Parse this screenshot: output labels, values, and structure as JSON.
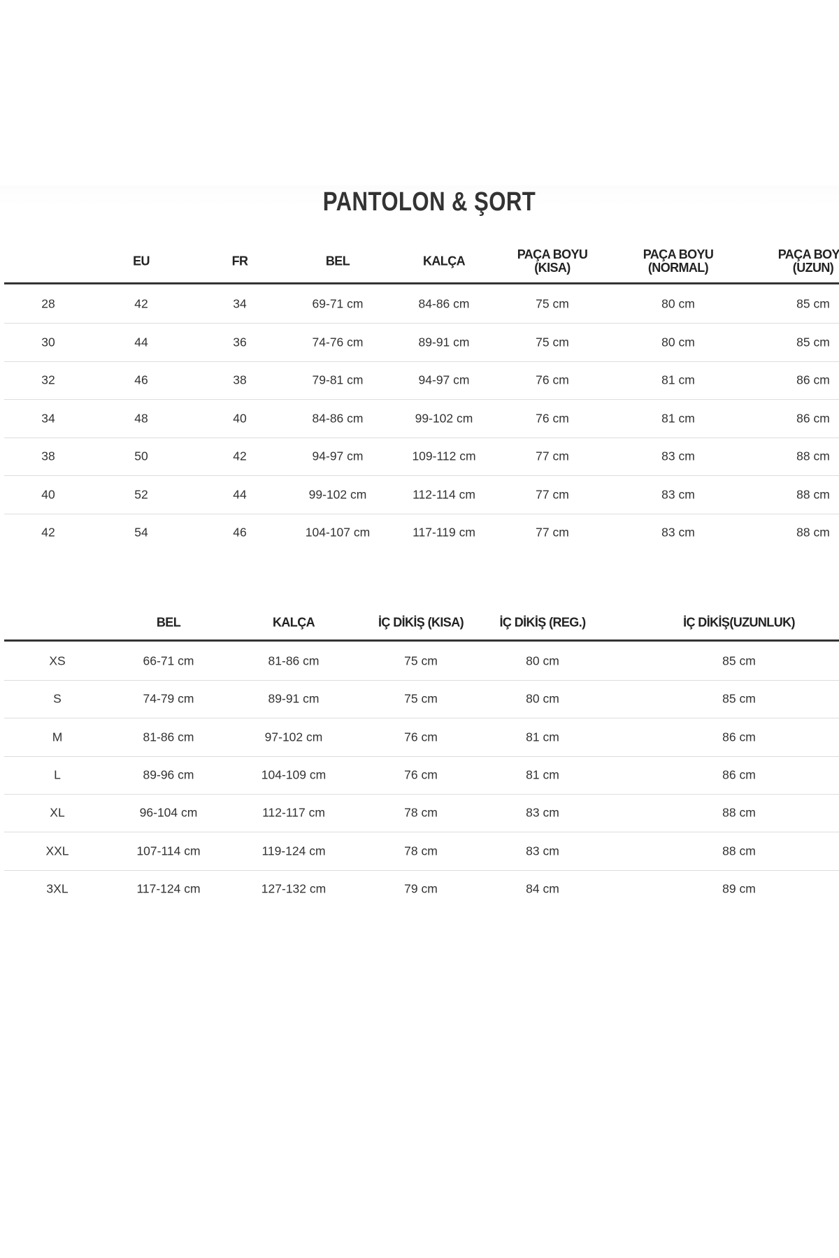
{
  "title": "PANTOLON & ŞORT",
  "table1": {
    "headers": [
      "",
      "EU",
      "FR",
      "BEL",
      "KALÇA",
      "PAÇA BOYU\n(KISA)",
      "PAÇA BOYU\n(NORMAL)",
      "PAÇA BOYU\n(UZUN)"
    ],
    "rows": [
      [
        "28",
        "42",
        "34",
        "69-71 cm",
        "84-86 cm",
        "75 cm",
        "80 cm",
        "85 cm"
      ],
      [
        "30",
        "44",
        "36",
        "74-76 cm",
        "89-91 cm",
        "75 cm",
        "80 cm",
        "85 cm"
      ],
      [
        "32",
        "46",
        "38",
        "79-81 cm",
        "94-97 cm",
        "76 cm",
        "81 cm",
        "86 cm"
      ],
      [
        "34",
        "48",
        "40",
        "84-86 cm",
        "99-102 cm",
        "76 cm",
        "81 cm",
        "86 cm"
      ],
      [
        "38",
        "50",
        "42",
        "94-97 cm",
        "109-112 cm",
        "77 cm",
        "83 cm",
        "88 cm"
      ],
      [
        "40",
        "52",
        "44",
        "99-102 cm",
        "112-114 cm",
        "77 cm",
        "83 cm",
        "88 cm"
      ],
      [
        "42",
        "54",
        "46",
        "104-107 cm",
        "117-119 cm",
        "77 cm",
        "83 cm",
        "88 cm"
      ]
    ]
  },
  "table2": {
    "headers": [
      "",
      "BEL",
      "KALÇA",
      "İÇ DİKİŞ (KISA)",
      "İÇ DİKİŞ (REG.)",
      "İÇ DİKİŞ(UZUNLUK)"
    ],
    "rows": [
      [
        "XS",
        "66-71 cm",
        "81-86 cm",
        "75 cm",
        "80 cm",
        "85 cm"
      ],
      [
        "S",
        "74-79 cm",
        "89-91 cm",
        "75 cm",
        "80 cm",
        "85 cm"
      ],
      [
        "M",
        "81-86 cm",
        "97-102 cm",
        "76 cm",
        "81 cm",
        "86 cm"
      ],
      [
        "L",
        "89-96 cm",
        "104-109 cm",
        "76 cm",
        "81 cm",
        "86 cm"
      ],
      [
        "XL",
        "96-104 cm",
        "112-117 cm",
        "78 cm",
        "83 cm",
        "88 cm"
      ],
      [
        "XXL",
        "107-114 cm",
        "119-124 cm",
        "78 cm",
        "83 cm",
        "88 cm"
      ],
      [
        "3XL",
        "117-124 cm",
        "127-132 cm",
        "79 cm",
        "84 cm",
        "89 cm"
      ]
    ]
  }
}
